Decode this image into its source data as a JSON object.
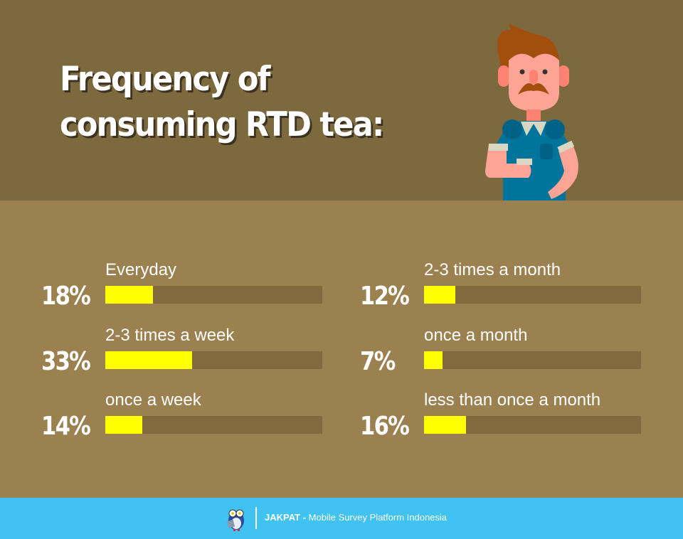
{
  "header": {
    "title_line1": "Frequency of",
    "title_line2": "consuming RTD tea:"
  },
  "chart_data": {
    "type": "bar",
    "orientation": "horizontal",
    "title": "Frequency of consuming RTD tea:",
    "categories": [
      "Everyday",
      "2-3 times a week",
      "once a week",
      "2-3 times a month",
      "once a month",
      "less than once a month"
    ],
    "values": [
      18,
      33,
      14,
      12,
      7,
      16
    ],
    "value_labels": [
      "18%",
      "33%",
      "14%",
      "12%",
      "7%",
      "16%"
    ],
    "unit": "%",
    "colors": {
      "fill": "#ffff00",
      "track": "#836a3e"
    }
  },
  "footer": {
    "brand": "JAKPAT -",
    "tagline": "Mobile Survey Platform Indonesia"
  },
  "colors": {
    "header_bg": "#7d693e",
    "body_bg": "#9c8150",
    "footer_bg": "#40c3f2"
  }
}
